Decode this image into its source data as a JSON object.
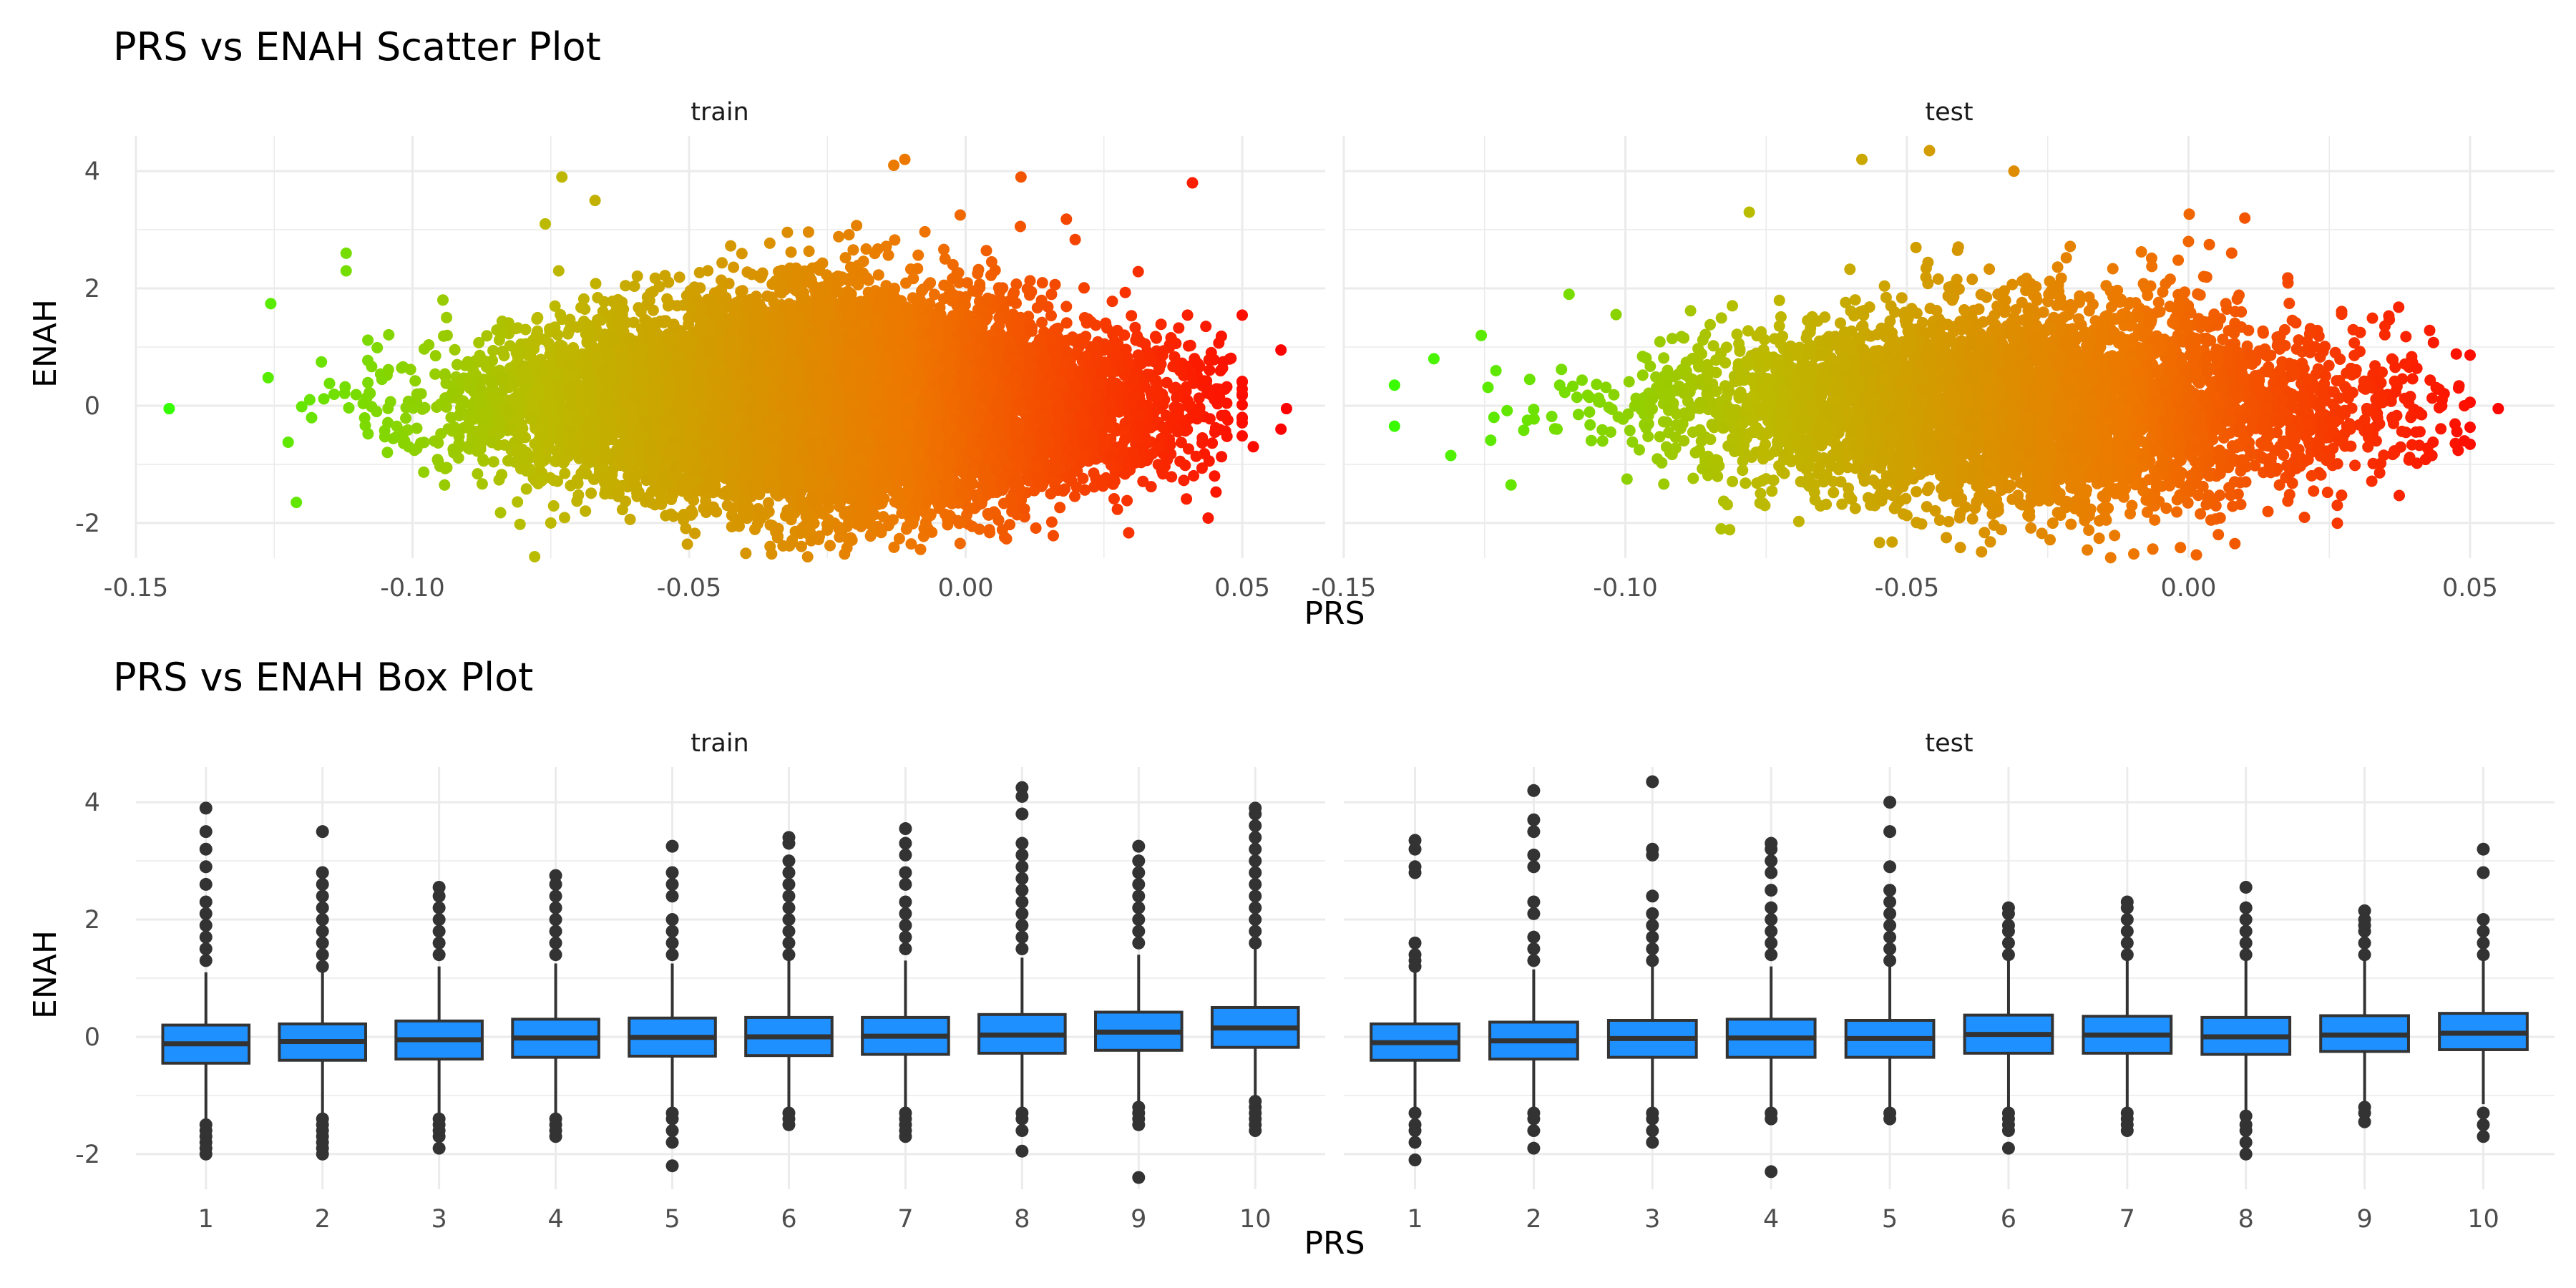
{
  "chart_data": [
    {
      "type": "scatter",
      "title": "PRS vs ENAH Scatter Plot",
      "xlabel": "PRS",
      "ylabel": "ENAH",
      "xlim": [
        -0.15,
        0.065
      ],
      "ylim": [
        -2.6,
        4.6
      ],
      "x_ticks": [
        -0.15,
        -0.1,
        -0.05,
        0.0,
        0.05
      ],
      "x_tick_labels": [
        "-0.15",
        "-0.10",
        "-0.05",
        "0.00",
        "0.05"
      ],
      "y_ticks": [
        -2,
        0,
        2,
        4
      ],
      "y_tick_labels": [
        "-2",
        "0",
        "2",
        "4"
      ],
      "grid": true,
      "color_gradient": [
        "#33ff00",
        "#bbbb00",
        "#ee7700",
        "#ff0000"
      ],
      "panels": [
        {
          "facet": "train",
          "point_count": 12000,
          "points": [
            {
              "x": -0.144,
              "y": -0.05
            },
            {
              "x": -0.112,
              "y": 2.6
            },
            {
              "x": -0.112,
              "y": 2.3
            },
            {
              "x": -0.121,
              "y": -1.65
            },
            {
              "x": -0.073,
              "y": 3.9
            },
            {
              "x": -0.067,
              "y": 3.5
            },
            {
              "x": -0.076,
              "y": 3.1
            },
            {
              "x": -0.011,
              "y": 4.2
            },
            {
              "x": -0.013,
              "y": 4.1
            },
            {
              "x": 0.01,
              "y": 3.9
            },
            {
              "x": 0.041,
              "y": 3.8
            },
            {
              "x": 0.057,
              "y": 0.95
            },
            {
              "x": 0.058,
              "y": -0.05
            },
            {
              "x": 0.057,
              "y": -0.4
            },
            {
              "x": 0.052,
              "y": -0.7
            },
            {
              "x": 0.045,
              "y": -1.2
            },
            {
              "x": -0.034,
              "y": -2.25
            },
            {
              "x": -0.001,
              "y": -2.35
            },
            {
              "x": -0.075,
              "y": -2.0
            }
          ]
        },
        {
          "facet": "test",
          "point_count": 5000,
          "points": [
            {
              "x": -0.141,
              "y": 0.35
            },
            {
              "x": -0.141,
              "y": -0.35
            },
            {
              "x": -0.134,
              "y": 0.8
            },
            {
              "x": -0.131,
              "y": -0.85
            },
            {
              "x": -0.11,
              "y": 1.9
            },
            {
              "x": -0.058,
              "y": 4.2
            },
            {
              "x": -0.046,
              "y": 4.35
            },
            {
              "x": -0.031,
              "y": 4.0
            },
            {
              "x": -0.078,
              "y": 3.3
            },
            {
              "x": 0.0,
              "y": 2.8
            },
            {
              "x": 0.01,
              "y": 3.2
            },
            {
              "x": 0.055,
              "y": -0.05
            },
            {
              "x": 0.049,
              "y": -0.6
            },
            {
              "x": 0.049,
              "y": 0.0
            },
            {
              "x": -0.083,
              "y": -2.1
            },
            {
              "x": -0.043,
              "y": -2.25
            },
            {
              "x": -0.006,
              "y": -1.95
            }
          ]
        }
      ]
    },
    {
      "type": "box",
      "title": "PRS vs ENAH Box Plot",
      "xlabel": "PRS",
      "ylabel": "ENAH",
      "categories": [
        "1",
        "2",
        "3",
        "4",
        "5",
        "6",
        "7",
        "8",
        "9",
        "10"
      ],
      "ylim": [
        -2.6,
        4.6
      ],
      "y_ticks": [
        -2,
        0,
        2,
        4
      ],
      "y_tick_labels": [
        "-2",
        "0",
        "2",
        "4"
      ],
      "grid": true,
      "box_color": "#1e90ff",
      "line_color": "#333333",
      "panels": [
        {
          "facet": "train",
          "boxes": [
            {
              "q1": -0.45,
              "median": -0.12,
              "q3": 0.2,
              "whisker_low": -1.4,
              "whisker_high": 1.1,
              "outliers": [
                3.9,
                3.5,
                3.2,
                2.9,
                2.6,
                2.3,
                2.1,
                1.9,
                1.7,
                1.5,
                1.3,
                -1.5,
                -1.6,
                -1.7,
                -1.8,
                -1.9,
                -2.0
              ]
            },
            {
              "q1": -0.4,
              "median": -0.08,
              "q3": 0.22,
              "whisker_low": -1.3,
              "whisker_high": 1.1,
              "outliers": [
                3.5,
                2.8,
                2.6,
                2.4,
                2.2,
                2.0,
                1.8,
                1.6,
                1.4,
                1.2,
                -1.4,
                -1.5,
                -1.6,
                -1.7,
                -1.8,
                -1.9,
                -2.0
              ]
            },
            {
              "q1": -0.38,
              "median": -0.05,
              "q3": 0.27,
              "whisker_low": -1.3,
              "whisker_high": 1.2,
              "outliers": [
                2.55,
                2.4,
                2.2,
                2.0,
                1.8,
                1.6,
                1.4,
                -1.4,
                -1.5,
                -1.6,
                -1.7,
                -1.9
              ]
            },
            {
              "q1": -0.35,
              "median": -0.02,
              "q3": 0.3,
              "whisker_low": -1.3,
              "whisker_high": 1.25,
              "outliers": [
                2.75,
                2.6,
                2.4,
                2.2,
                2.0,
                1.8,
                1.6,
                1.4,
                -1.4,
                -1.5,
                -1.6,
                -1.7
              ]
            },
            {
              "q1": -0.33,
              "median": -0.01,
              "q3": 0.32,
              "whisker_low": -1.25,
              "whisker_high": 1.25,
              "outliers": [
                3.25,
                2.8,
                2.6,
                2.4,
                2.0,
                1.8,
                1.6,
                1.4,
                -1.3,
                -1.4,
                -1.6,
                -1.8,
                -2.2
              ]
            },
            {
              "q1": -0.32,
              "median": 0.0,
              "q3": 0.33,
              "whisker_low": -1.25,
              "whisker_high": 1.3,
              "outliers": [
                3.4,
                3.3,
                3.0,
                2.8,
                2.6,
                2.4,
                2.2,
                2.0,
                1.8,
                1.6,
                1.4,
                -1.3,
                -1.4,
                -1.5
              ]
            },
            {
              "q1": -0.3,
              "median": 0.01,
              "q3": 0.33,
              "whisker_low": -1.25,
              "whisker_high": 1.3,
              "outliers": [
                3.55,
                3.3,
                3.1,
                2.8,
                2.6,
                2.3,
                2.1,
                1.9,
                1.7,
                1.5,
                -1.3,
                -1.4,
                -1.5,
                -1.6,
                -1.7
              ]
            },
            {
              "q1": -0.28,
              "median": 0.03,
              "q3": 0.38,
              "whisker_low": -1.25,
              "whisker_high": 1.35,
              "outliers": [
                4.25,
                4.1,
                3.8,
                3.3,
                3.1,
                2.9,
                2.7,
                2.5,
                2.3,
                2.1,
                1.9,
                1.7,
                1.5,
                -1.3,
                -1.4,
                -1.6,
                -1.95
              ]
            },
            {
              "q1": -0.23,
              "median": 0.08,
              "q3": 0.42,
              "whisker_low": -1.2,
              "whisker_high": 1.4,
              "outliers": [
                3.25,
                3.0,
                2.8,
                2.6,
                2.4,
                2.2,
                2.0,
                1.8,
                1.6,
                -1.2,
                -1.3,
                -1.4,
                -1.5,
                -2.4
              ]
            },
            {
              "q1": -0.18,
              "median": 0.15,
              "q3": 0.5,
              "whisker_low": -1.1,
              "whisker_high": 1.5,
              "outliers": [
                3.9,
                3.8,
                3.6,
                3.4,
                3.2,
                3.0,
                2.8,
                2.6,
                2.4,
                2.2,
                2.0,
                1.8,
                1.6,
                -1.1,
                -1.2,
                -1.3,
                -1.4,
                -1.5,
                -1.6
              ]
            }
          ]
        },
        {
          "facet": "test",
          "boxes": [
            {
              "q1": -0.4,
              "median": -0.1,
              "q3": 0.22,
              "whisker_low": -1.25,
              "whisker_high": 1.1,
              "outliers": [
                3.35,
                3.2,
                2.9,
                2.8,
                1.6,
                1.4,
                1.3,
                1.2,
                -1.3,
                -1.5,
                -1.6,
                -1.8,
                -2.1
              ]
            },
            {
              "q1": -0.38,
              "median": -0.07,
              "q3": 0.25,
              "whisker_low": -1.25,
              "whisker_high": 1.15,
              "outliers": [
                4.2,
                3.7,
                3.5,
                3.1,
                2.9,
                2.3,
                2.1,
                1.7,
                1.5,
                1.3,
                -1.3,
                -1.4,
                -1.6,
                -1.9
              ]
            },
            {
              "q1": -0.35,
              "median": -0.03,
              "q3": 0.28,
              "whisker_low": -1.2,
              "whisker_high": 1.2,
              "outliers": [
                4.35,
                3.2,
                3.1,
                2.4,
                2.1,
                1.9,
                1.7,
                1.5,
                1.3,
                -1.3,
                -1.4,
                -1.6,
                -1.8
              ]
            },
            {
              "q1": -0.35,
              "median": -0.02,
              "q3": 0.3,
              "whisker_low": -1.2,
              "whisker_high": 1.2,
              "outliers": [
                3.3,
                3.2,
                3.0,
                2.8,
                2.5,
                2.2,
                2.0,
                1.8,
                1.6,
                1.4,
                -1.3,
                -1.4,
                -2.3
              ]
            },
            {
              "q1": -0.35,
              "median": -0.03,
              "q3": 0.28,
              "whisker_low": -1.2,
              "whisker_high": 1.2,
              "outliers": [
                4.0,
                3.5,
                2.9,
                2.5,
                2.3,
                2.1,
                1.9,
                1.7,
                1.5,
                1.3,
                -1.3,
                -1.4
              ]
            },
            {
              "q1": -0.28,
              "median": 0.04,
              "q3": 0.37,
              "whisker_low": -1.2,
              "whisker_high": 1.3,
              "outliers": [
                2.2,
                2.1,
                1.9,
                1.8,
                1.6,
                1.4,
                -1.3,
                -1.4,
                -1.5,
                -1.6,
                -1.9
              ]
            },
            {
              "q1": -0.28,
              "median": 0.03,
              "q3": 0.35,
              "whisker_low": -1.2,
              "whisker_high": 1.3,
              "outliers": [
                2.3,
                2.2,
                2.0,
                1.8,
                1.6,
                1.4,
                -1.3,
                -1.4,
                -1.5,
                -1.6
              ]
            },
            {
              "q1": -0.3,
              "median": 0.0,
              "q3": 0.33,
              "whisker_low": -1.25,
              "whisker_high": 1.3,
              "outliers": [
                2.55,
                2.2,
                2.0,
                1.8,
                1.6,
                1.4,
                -1.35,
                -1.5,
                -1.6,
                -1.8,
                -2.0
              ]
            },
            {
              "q1": -0.25,
              "median": 0.03,
              "q3": 0.36,
              "whisker_low": -1.2,
              "whisker_high": 1.3,
              "outliers": [
                2.15,
                2.0,
                1.9,
                1.8,
                1.6,
                1.4,
                -1.2,
                -1.3,
                -1.45
              ]
            },
            {
              "q1": -0.22,
              "median": 0.06,
              "q3": 0.4,
              "whisker_low": -1.15,
              "whisker_high": 1.35,
              "outliers": [
                3.2,
                2.8,
                2.0,
                1.8,
                1.6,
                1.4,
                -1.3,
                -1.5,
                -1.7
              ]
            }
          ]
        }
      ]
    }
  ]
}
